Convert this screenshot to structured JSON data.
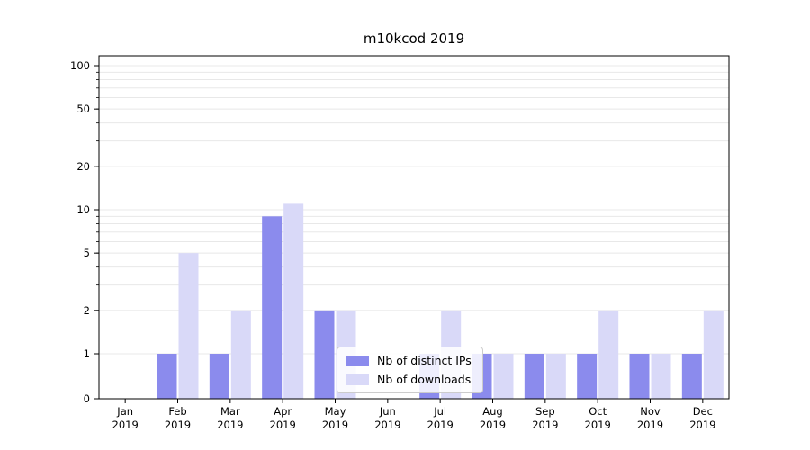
{
  "chart_data": {
    "type": "bar",
    "title": "m10kcod 2019",
    "xlabel": "",
    "ylabel": "",
    "scale": "symlog",
    "ylim": [
      0,
      117
    ],
    "grid": true,
    "legend_position": "lower center",
    "yticks": [
      0,
      1,
      2,
      5,
      10,
      20,
      50,
      100
    ],
    "minor_gridlines": [
      1,
      2,
      3,
      4,
      5,
      6,
      7,
      8,
      9,
      10,
      20,
      30,
      40,
      50,
      60,
      70,
      80,
      90,
      100
    ],
    "categories": [
      "Jan 2019",
      "Feb 2019",
      "Mar 2019",
      "Apr 2019",
      "May 2019",
      "Jun 2019",
      "Jul 2019",
      "Aug 2019",
      "Sep 2019",
      "Oct 2019",
      "Nov 2019",
      "Dec 2019"
    ],
    "series": [
      {
        "name": "Nb of distinct IPs",
        "color": "#8b8bed",
        "values": [
          0,
          1,
          1,
          9,
          2,
          0,
          1,
          1,
          1,
          1,
          1,
          1
        ]
      },
      {
        "name": "Nb of downloads",
        "color": "#d9d9f8",
        "values": [
          0,
          5,
          2,
          11,
          2,
          0,
          2,
          1,
          1,
          2,
          1,
          2
        ]
      }
    ]
  }
}
